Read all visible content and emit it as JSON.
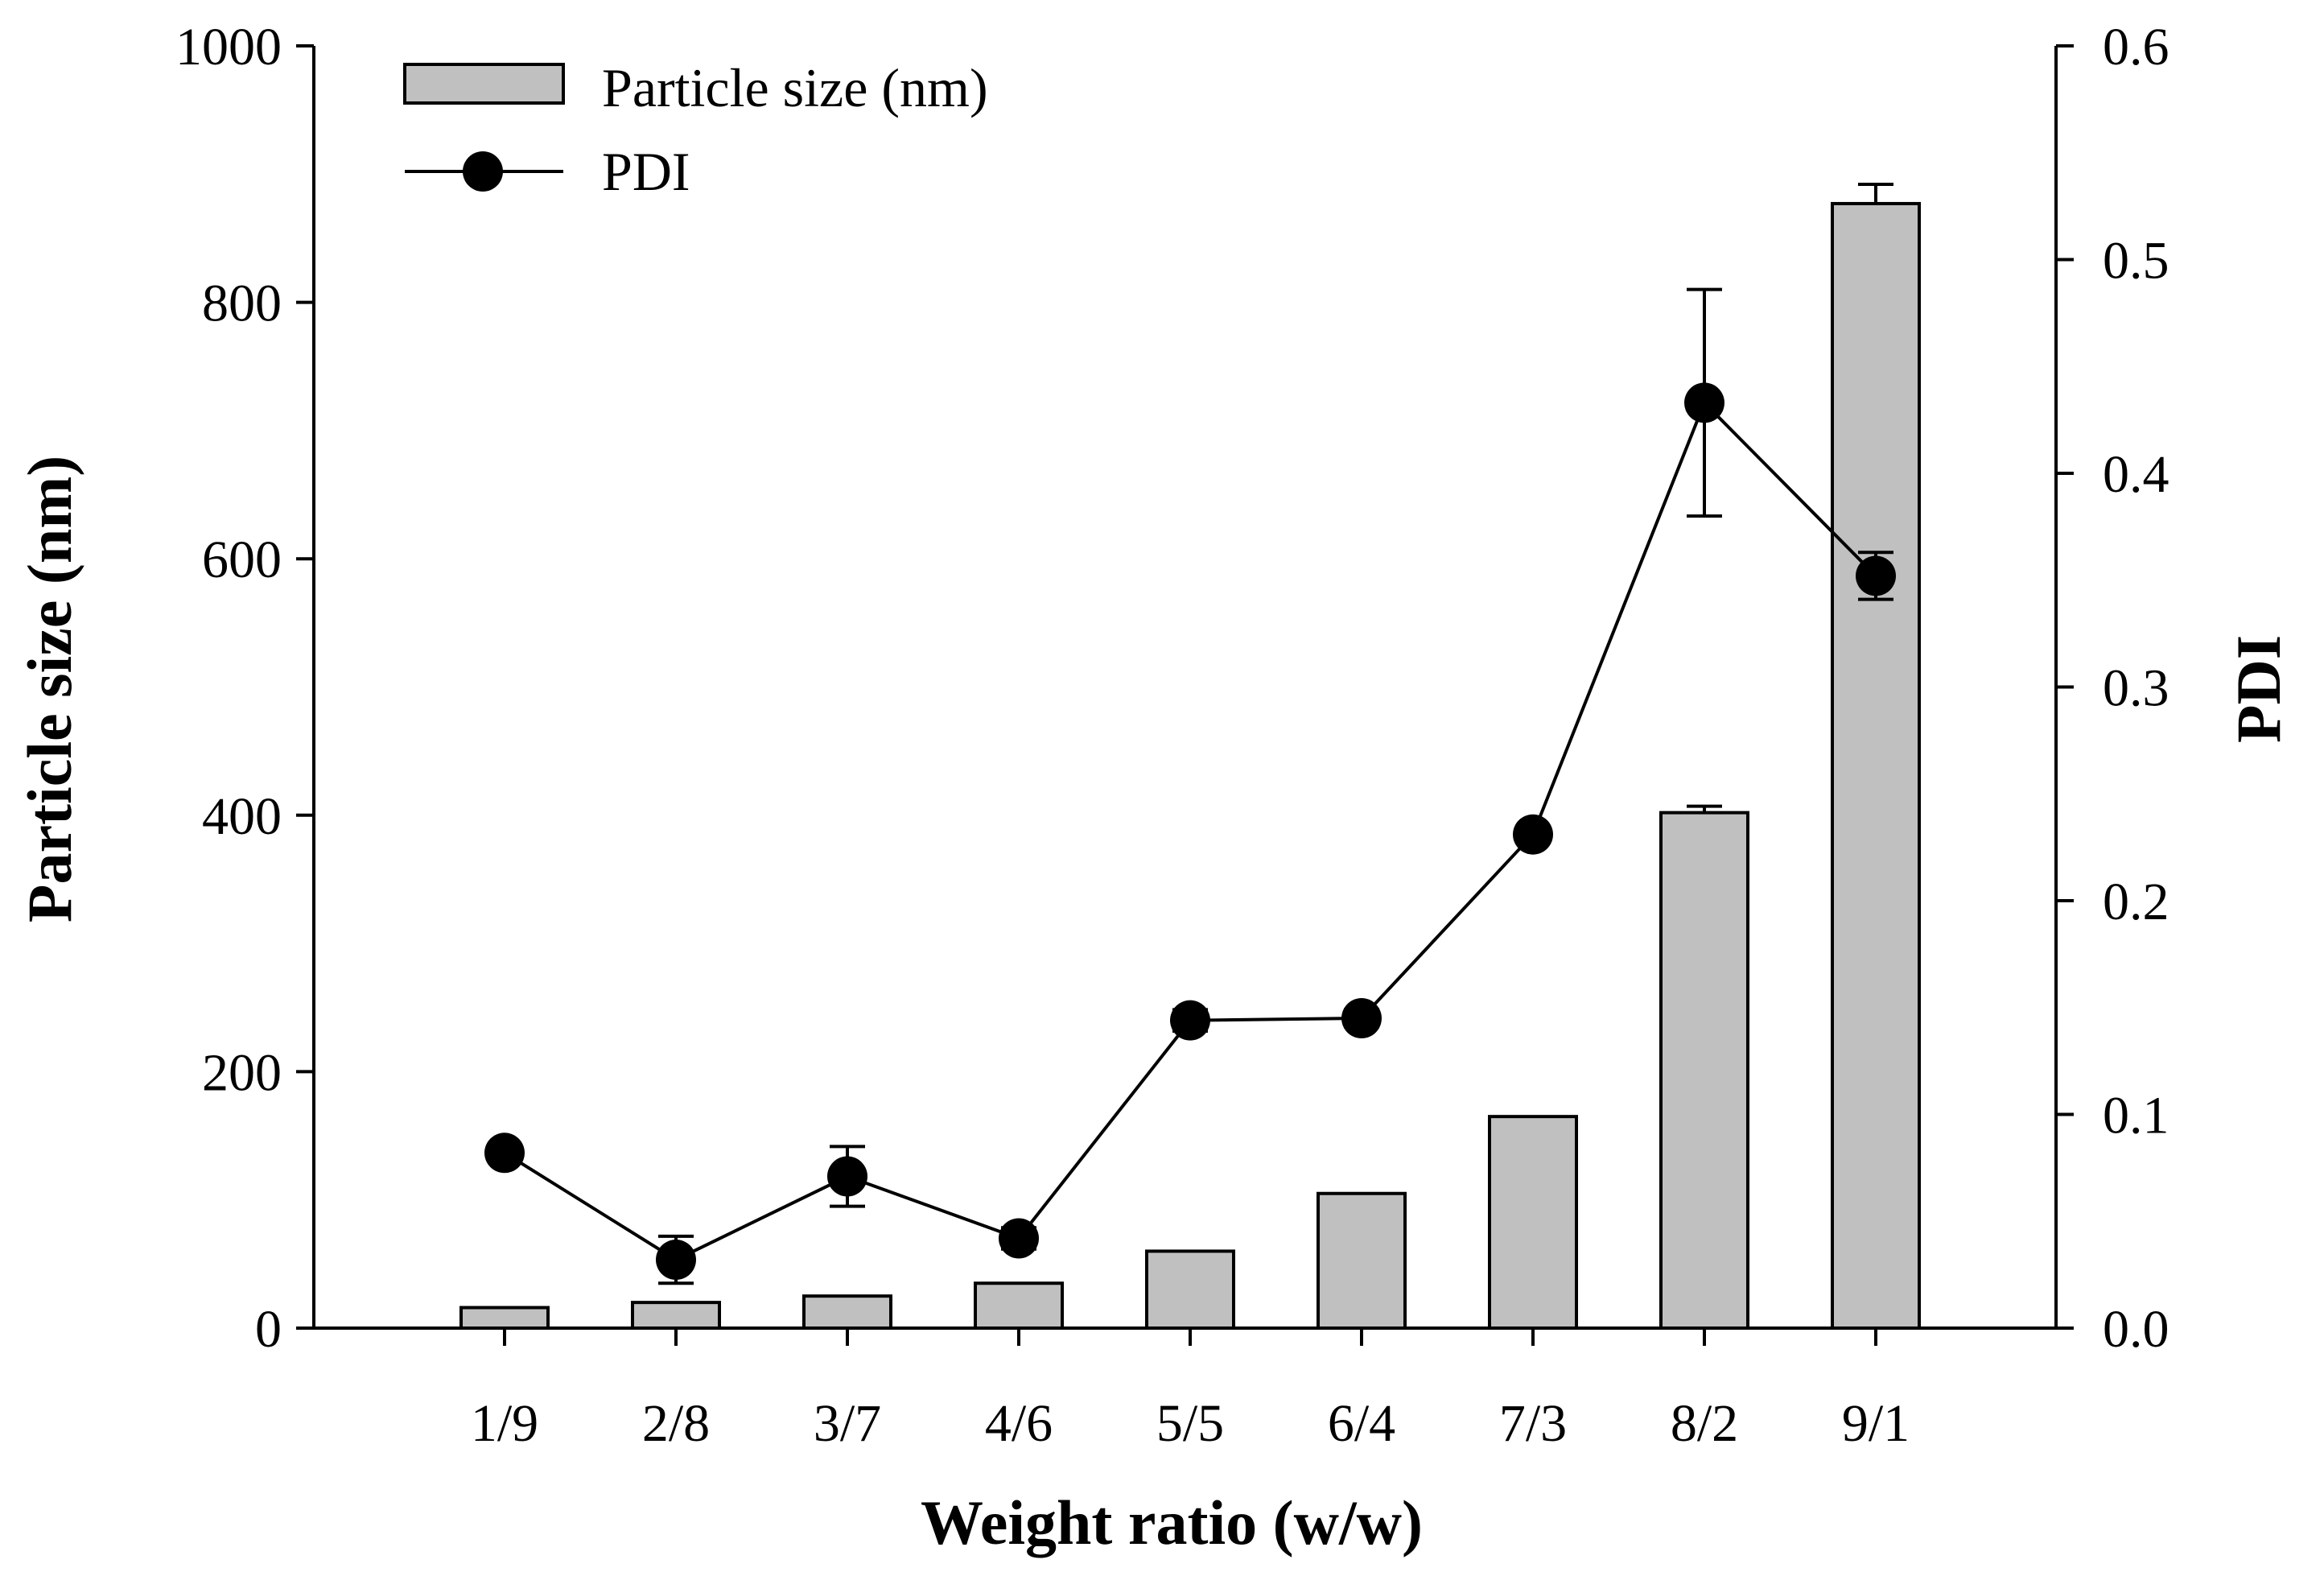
{
  "chart_data": {
    "type": "bar",
    "categories": [
      "1/9",
      "2/8",
      "3/7",
      "4/6",
      "5/5",
      "6/4",
      "7/3",
      "8/2",
      "9/1"
    ],
    "xlabel": "Weight ratio (w/w)",
    "series": [
      {
        "name": "Particle size (nm)",
        "type": "bar",
        "axis": "left",
        "values": [
          16,
          20,
          25,
          35,
          60,
          105,
          165,
          402,
          877
        ],
        "errors": [
          0,
          0,
          0,
          0,
          0,
          0,
          0,
          5,
          15
        ]
      },
      {
        "name": "PDI",
        "type": "line",
        "axis": "right",
        "values": [
          0.082,
          0.032,
          0.071,
          0.042,
          0.144,
          0.145,
          0.231,
          0.433,
          0.352
        ],
        "errors": [
          0.003,
          0.011,
          0.014,
          0.005,
          0.005,
          0.004,
          0.003,
          0.053,
          0.011
        ]
      }
    ],
    "y_left": {
      "label": "Particle size (nm)",
      "lim": [
        0,
        1000
      ],
      "ticks": [
        0,
        200,
        400,
        600,
        800,
        1000
      ],
      "tick_labels": [
        "0",
        "200",
        "400",
        "600",
        "800",
        "1000"
      ]
    },
    "y_right": {
      "label": "PDI",
      "lim": [
        0,
        0.6
      ],
      "ticks": [
        0,
        0.1,
        0.2,
        0.3,
        0.4,
        0.5,
        0.6
      ],
      "tick_labels": [
        "0.0",
        "0.1",
        "0.2",
        "0.3",
        "0.4",
        "0.5",
        "0.6"
      ]
    },
    "legend": {
      "position": "top-left",
      "entries": [
        "Particle size (nm)",
        "PDI"
      ]
    },
    "grid": false,
    "colors": {
      "bar_fill": "#c0c0c0",
      "stroke": "#000000",
      "marker": "#000000"
    }
  }
}
